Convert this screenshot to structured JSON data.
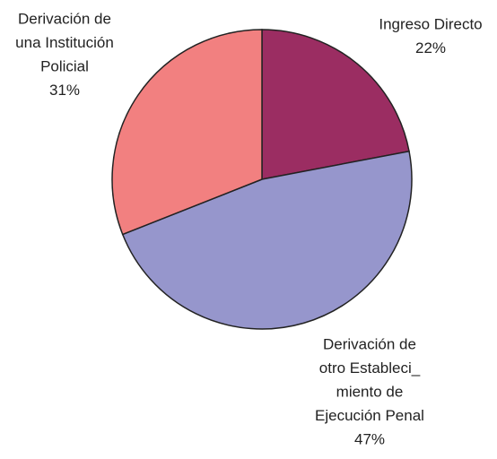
{
  "chart_data": {
    "type": "pie",
    "categories": [
      [
        "Ingreso Directo"
      ],
      [
        "Derivación de",
        "otro Estableci_",
        "miento de",
        "Ejecución Penal"
      ],
      [
        "Derivación de",
        "una Institución",
        "Policial"
      ]
    ],
    "values": [
      22,
      47,
      31
    ],
    "value_labels": [
      "22%",
      "47%",
      "31%"
    ],
    "colors": [
      "#9b2d62",
      "#9696cc",
      "#f28080"
    ]
  }
}
